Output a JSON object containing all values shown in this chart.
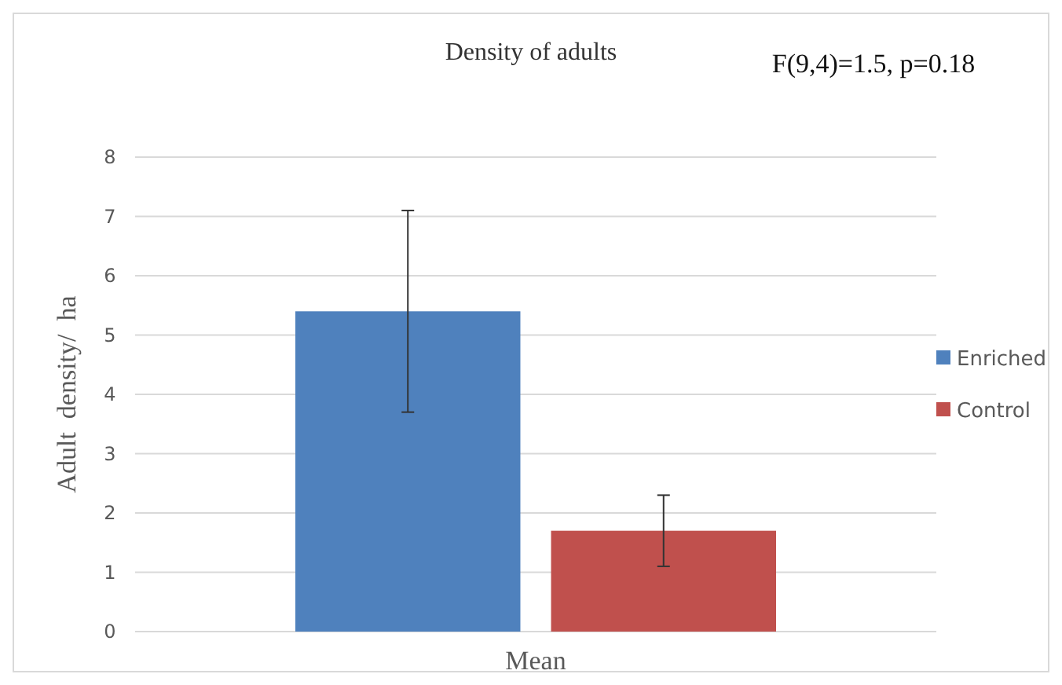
{
  "chart_data": {
    "type": "bar",
    "title": "Density  of adults",
    "ylabel": "Adult  density/  ha",
    "annotations": [
      "F(9,4)=1.5, p=0.18"
    ],
    "categories": [
      "Mean"
    ],
    "series": [
      {
        "name": "Enriched",
        "color": "#4f81bd",
        "values": [
          5.4
        ],
        "errors": [
          [
            3.7,
            7.1
          ]
        ]
      },
      {
        "name": "Control",
        "color": "#c0504d",
        "values": [
          1.7
        ],
        "errors": [
          [
            1.1,
            2.3
          ]
        ]
      }
    ],
    "ylim": [
      0,
      8
    ],
    "yticks": [
      0,
      1,
      2,
      3,
      4,
      5,
      6,
      7,
      8
    ],
    "grid": "y",
    "legend": "right"
  }
}
